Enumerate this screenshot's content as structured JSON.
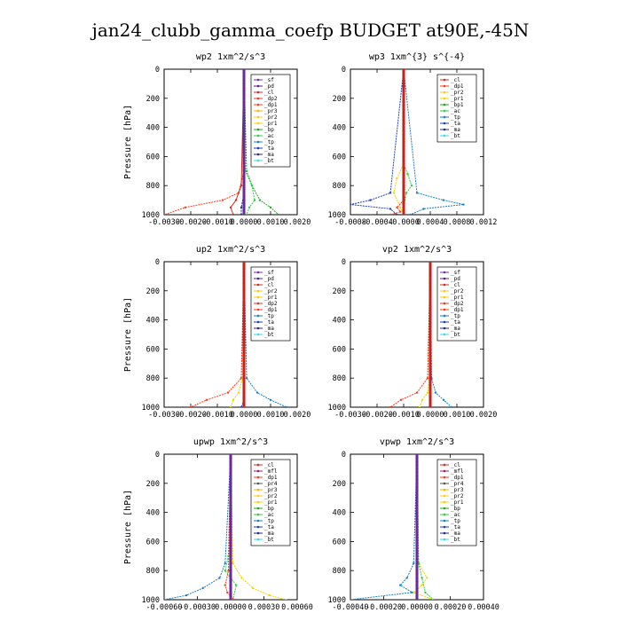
{
  "title": "jan24_clubb_gamma_coefp  BUDGET at90E,-45N",
  "colors": {
    "sf": "#7a2fa8",
    "pd": "#5b1f8a",
    "cl": "#d12c1c",
    "dp2": "#e23a22",
    "dp1": "#ff3b1a",
    "pr3": "#ffb000",
    "pr2": "#ffc820",
    "pr1": "#f4d400",
    "bp": "#1fa81f",
    "ac": "#33cc44",
    "tp": "#1a7fbf",
    "ta": "#1b3fbf",
    "ma": "#2a2a8a",
    "bt": "#38d8e8",
    "mfl": "#a01c6a",
    "dp4": "#c2185b"
  },
  "chart_data": [
    {
      "type": "line",
      "title": "wp2   1xm^2/s^3",
      "ylabel": "Pressure [hPa]",
      "ylim": [
        1000,
        0
      ],
      "xlim": [
        -0.003,
        0.002
      ],
      "xticks": [
        "-0.0030",
        "-0.0020",
        "-0.0010",
        "0.0000",
        "0.0010",
        "0.0020"
      ],
      "xtick_values": [
        -0.003,
        -0.002,
        -0.001,
        0,
        0.001,
        0.002
      ],
      "yticks": [
        0,
        200,
        400,
        600,
        800,
        1000
      ],
      "legend": [
        "_sf",
        "_pd",
        "_cl",
        "_dp2",
        "_dp1",
        "_pr3",
        "_pr2",
        "_pr1",
        "_bp",
        "_ac",
        "_tp",
        "_ta",
        "_ma",
        "_bt"
      ],
      "series": [
        {
          "key": "pd",
          "p": [
            0,
            700,
            850,
            950,
            1000
          ],
          "v": [
            0,
            0,
            0,
            0,
            0
          ]
        },
        {
          "key": "dp1",
          "p": [
            0,
            700,
            850,
            900,
            950,
            1000
          ],
          "v": [
            0,
            0,
            -0.0002,
            -0.0008,
            -0.0022,
            -0.003
          ]
        },
        {
          "key": "cl",
          "p": [
            0,
            800,
            900,
            950,
            1000
          ],
          "v": [
            0,
            -0.0001,
            -0.0003,
            -0.0005,
            -0.0004
          ]
        },
        {
          "key": "bp",
          "p": [
            0,
            700,
            800,
            900,
            950,
            1000
          ],
          "v": [
            0,
            0.0001,
            0.0003,
            0.0006,
            0.001,
            0.0013
          ]
        },
        {
          "key": "ac",
          "p": [
            0,
            700,
            800,
            900,
            950,
            1000
          ],
          "v": [
            0,
            5e-05,
            0.0003,
            0.0004,
            0.0002,
            0.0001
          ]
        },
        {
          "key": "ma",
          "p": [
            0,
            850,
            950,
            1000
          ],
          "v": [
            0,
            0,
            -0.0001,
            -0.0001
          ]
        },
        {
          "key": "sf",
          "p": [
            0,
            1000
          ],
          "v": [
            0,
            0
          ]
        }
      ]
    },
    {
      "type": "line",
      "title": "wp3   1xm^{3} s^{-4}",
      "ylabel": "",
      "ylim": [
        1000,
        0
      ],
      "xlim": [
        -0.0008,
        0.0012
      ],
      "xticks": [
        "-0.0008",
        "-0.0004",
        "-0.0000",
        "0.0004",
        "0.0008",
        "0.0012"
      ],
      "xtick_values": [
        -0.0008,
        -0.0004,
        0,
        0.0004,
        0.0008,
        0.0012
      ],
      "yticks": [
        0,
        200,
        400,
        600,
        800,
        1000
      ],
      "legend": [
        "_cl",
        "_dp1",
        "_pr2",
        "_pr1",
        "_bp1",
        "_ac",
        "_tp",
        "_ta",
        "_ma",
        "_bt"
      ],
      "series": [
        {
          "key": "pr2",
          "p": [
            0,
            650,
            750,
            850,
            950,
            1000
          ],
          "v": [
            0,
            0,
            -0.0001,
            -0.00015,
            -5e-05,
            0
          ]
        },
        {
          "key": "ac",
          "p": [
            0,
            650,
            720,
            800,
            850,
            950,
            1000
          ],
          "v": [
            0,
            0,
            6e-05,
            0.00012,
            4e-05,
            0,
            0
          ]
        },
        {
          "key": "tp",
          "p": [
            0,
            850,
            900,
            930,
            960,
            1000
          ],
          "v": [
            0,
            0.0002,
            0.0006,
            0.0009,
            0.0003,
            0.0001
          ]
        },
        {
          "key": "ta",
          "p": [
            0,
            850,
            900,
            930,
            960,
            1000
          ],
          "v": [
            0,
            -0.0002,
            -0.0005,
            -0.0008,
            -0.0002,
            -0.0001
          ]
        },
        {
          "key": "dp1",
          "p": [
            0,
            900,
            950,
            980,
            1000
          ],
          "v": [
            0,
            0,
            -0.0001,
            -5e-05,
            -0.0002
          ]
        },
        {
          "key": "cl",
          "p": [
            0,
            1000
          ],
          "v": [
            0,
            0
          ]
        }
      ]
    },
    {
      "type": "line",
      "title": "up2   1xm^2/s^3",
      "ylabel": "Pressure [hPa]",
      "ylim": [
        1000,
        0
      ],
      "xlim": [
        -0.003,
        0.002
      ],
      "xticks": [
        "-0.0030",
        "-0.0020",
        "-0.0010",
        "0.0000",
        "0.0010",
        "0.0020"
      ],
      "xtick_values": [
        -0.003,
        -0.002,
        -0.001,
        0,
        0.001,
        0.002
      ],
      "yticks": [
        0,
        200,
        400,
        600,
        800,
        1000
      ],
      "legend": [
        "_sf",
        "_pd",
        "_cl",
        "_pr2",
        "_pr1",
        "_dp2",
        "_dp1",
        "_tp",
        "_ta",
        "_ma",
        "_bt"
      ],
      "series": [
        {
          "key": "dp1",
          "p": [
            0,
            800,
            900,
            950,
            1000
          ],
          "v": [
            0,
            -0.0001,
            -0.0006,
            -0.0014,
            -0.002
          ]
        },
        {
          "key": "pr1",
          "p": [
            0,
            800,
            900,
            950,
            1000
          ],
          "v": [
            0,
            -5e-05,
            -0.0002,
            -0.0004,
            -0.0005
          ]
        },
        {
          "key": "tp",
          "p": [
            0,
            800,
            900,
            950,
            1000
          ],
          "v": [
            0,
            0.0001,
            0.0005,
            0.001,
            0.0016
          ]
        },
        {
          "key": "ta",
          "p": [
            0,
            850,
            950,
            1000
          ],
          "v": [
            0,
            0,
            0,
            -0.0001
          ]
        },
        {
          "key": "cl",
          "p": [
            0,
            1000
          ],
          "v": [
            0,
            0
          ]
        }
      ]
    },
    {
      "type": "line",
      "title": "vp2   1xm^2/s^3",
      "ylabel": "",
      "ylim": [
        1000,
        0
      ],
      "xlim": [
        -0.003,
        0.002
      ],
      "xticks": [
        "-0.0030",
        "-0.0020",
        "-0.0010",
        "0.0000",
        "0.0010",
        "0.0020"
      ],
      "xtick_values": [
        -0.003,
        -0.002,
        -0.001,
        0,
        0.001,
        0.002
      ],
      "yticks": [
        0,
        200,
        400,
        600,
        800,
        1000
      ],
      "legend": [
        "_sf",
        "_pd",
        "_cl",
        "_pr2",
        "_pr1",
        "_dp2",
        "_dp1",
        "_tp",
        "_ta",
        "_ma",
        "_bt"
      ],
      "series": [
        {
          "key": "dp1",
          "p": [
            0,
            800,
            900,
            950,
            1000
          ],
          "v": [
            0,
            -0.0001,
            -0.0005,
            -0.0011,
            -0.0015
          ]
        },
        {
          "key": "pr1",
          "p": [
            0,
            800,
            900,
            950,
            1000
          ],
          "v": [
            0,
            -3e-05,
            -0.0001,
            -0.0003,
            -0.0004
          ]
        },
        {
          "key": "tp",
          "p": [
            0,
            800,
            900,
            950,
            1000
          ],
          "v": [
            0,
            5e-05,
            0.0002,
            0.0005,
            0.0008
          ]
        },
        {
          "key": "cl",
          "p": [
            0,
            1000
          ],
          "v": [
            0,
            0
          ]
        }
      ]
    },
    {
      "type": "line",
      "title": "upwp   1xm^2/s^3",
      "ylabel": "Pressure [hPa]",
      "ylim": [
        1000,
        0
      ],
      "xlim": [
        -0.0006,
        0.0006
      ],
      "xticks": [
        "-0.00060",
        "-0.00030",
        "0.00000",
        "0.00030",
        "0.00060"
      ],
      "xtick_values": [
        -0.0006,
        -0.0003,
        0,
        0.0003,
        0.0006
      ],
      "yticks": [
        0,
        200,
        400,
        600,
        800,
        1000
      ],
      "legend": [
        "_cl",
        "_mfl",
        "_dp1",
        "_pr4",
        "_pr3",
        "_pr2",
        "_pr1",
        "_bp",
        "_ac",
        "_tp",
        "_ta",
        "_ma",
        "_bt"
      ],
      "series": [
        {
          "key": "pr1",
          "p": [
            0,
            750,
            850,
            920,
            970,
            1000
          ],
          "v": [
            0,
            2e-05,
            0.0001,
            0.0002,
            0.00035,
            0.0005
          ]
        },
        {
          "key": "tp",
          "p": [
            0,
            750,
            850,
            920,
            970,
            1000
          ],
          "v": [
            0,
            -5e-05,
            -0.0001,
            -0.00025,
            -0.0004,
            -0.0006
          ]
        },
        {
          "key": "ac",
          "p": [
            0,
            700,
            800,
            900,
            1000
          ],
          "v": [
            0,
            -2e-05,
            -5e-05,
            5e-05,
            2e-05
          ]
        },
        {
          "key": "dp1",
          "p": [
            0,
            800,
            900,
            950,
            1000
          ],
          "v": [
            0,
            -2e-05,
            -5e-05,
            -3e-05,
            3e-05
          ]
        },
        {
          "key": "sf",
          "p": [
            0,
            1000
          ],
          "v": [
            0,
            0
          ]
        }
      ]
    },
    {
      "type": "line",
      "title": "vpwp   1xm^2/s^3",
      "ylabel": "",
      "ylim": [
        1000,
        0
      ],
      "xlim": [
        -0.0004,
        0.0004
      ],
      "xticks": [
        "-0.00040",
        "-0.00020",
        "0.00000",
        "0.00020",
        "0.00040"
      ],
      "xtick_values": [
        -0.0004,
        -0.0002,
        0,
        0.0002,
        0.0004
      ],
      "yticks": [
        0,
        200,
        400,
        600,
        800,
        1000
      ],
      "legend": [
        "_cl",
        "_mfl",
        "_dp1",
        "_pr4",
        "_pr3",
        "_pr2",
        "_pr1",
        "_bp",
        "_ac",
        "_tp",
        "_ta",
        "_ma",
        "_bt"
      ],
      "series": [
        {
          "key": "pr1",
          "p": [
            0,
            750,
            850,
            900,
            950,
            1000
          ],
          "v": [
            0,
            1e-05,
            6e-05,
            3e-05,
            -2e-05,
            0.0001
          ]
        },
        {
          "key": "tp",
          "p": [
            0,
            750,
            850,
            900,
            950,
            1000
          ],
          "v": [
            0,
            -2e-05,
            -6e-05,
            -0.0001,
            -3e-05,
            -0.0004
          ]
        },
        {
          "key": "ac",
          "p": [
            0,
            750,
            850,
            950,
            1000
          ],
          "v": [
            0,
            1e-05,
            3e-05,
            5e-05,
            0.0001
          ]
        },
        {
          "key": "sf",
          "p": [
            0,
            1000
          ],
          "v": [
            0,
            0
          ]
        }
      ]
    }
  ]
}
